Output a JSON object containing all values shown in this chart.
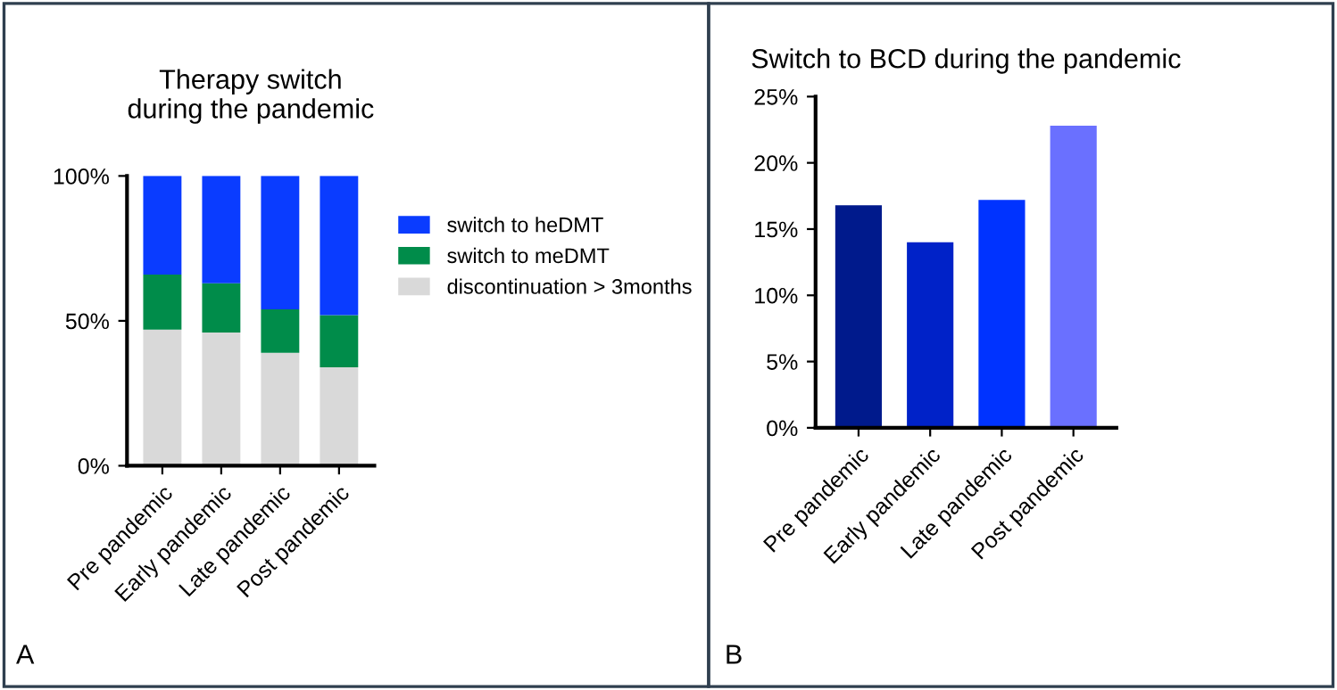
{
  "chart_data": [
    {
      "type": "bar",
      "title": "Therapy switch\nduring the pandemic",
      "stacked": true,
      "categories": [
        "Pre pandemic",
        "Early pandemic",
        "Late pandemic",
        "Post pandemic"
      ],
      "series": [
        {
          "name": "discontinuation > 3months",
          "color": "#d9d9d9",
          "values": [
            47,
            46,
            39,
            34
          ]
        },
        {
          "name": "switch to meDMT",
          "color": "#008c4a",
          "values": [
            19,
            17,
            15,
            18
          ]
        },
        {
          "name": "switch to heDMT",
          "color": "#0a3cff",
          "values": [
            34,
            37,
            46,
            48
          ]
        }
      ],
      "ylim": [
        0,
        100
      ],
      "yticks": [
        {
          "value": 0,
          "label": "0%"
        },
        {
          "value": 50,
          "label": "50%"
        },
        {
          "value": 100,
          "label": "100%"
        }
      ],
      "legend": "right",
      "grid": false,
      "annotations": [
        "A"
      ]
    },
    {
      "type": "bar",
      "title": "Switch to BCD during the pandemic",
      "categories": [
        "Pre pandemic",
        "Early pandemic",
        "Late pandemic",
        "Post pandemic"
      ],
      "values": [
        16.8,
        14.0,
        17.2,
        22.8
      ],
      "colors": [
        "#001a8c",
        "#0022c8",
        "#0033ff",
        "#6a70ff"
      ],
      "ylim": [
        0,
        25
      ],
      "yticks": [
        {
          "value": 0,
          "label": "0%"
        },
        {
          "value": 5,
          "label": "5%"
        },
        {
          "value": 10,
          "label": "10%"
        },
        {
          "value": 15,
          "label": "15%"
        },
        {
          "value": 20,
          "label": "20%"
        },
        {
          "value": 25,
          "label": "25%"
        }
      ],
      "grid": false,
      "annotations": [
        "B"
      ]
    }
  ]
}
